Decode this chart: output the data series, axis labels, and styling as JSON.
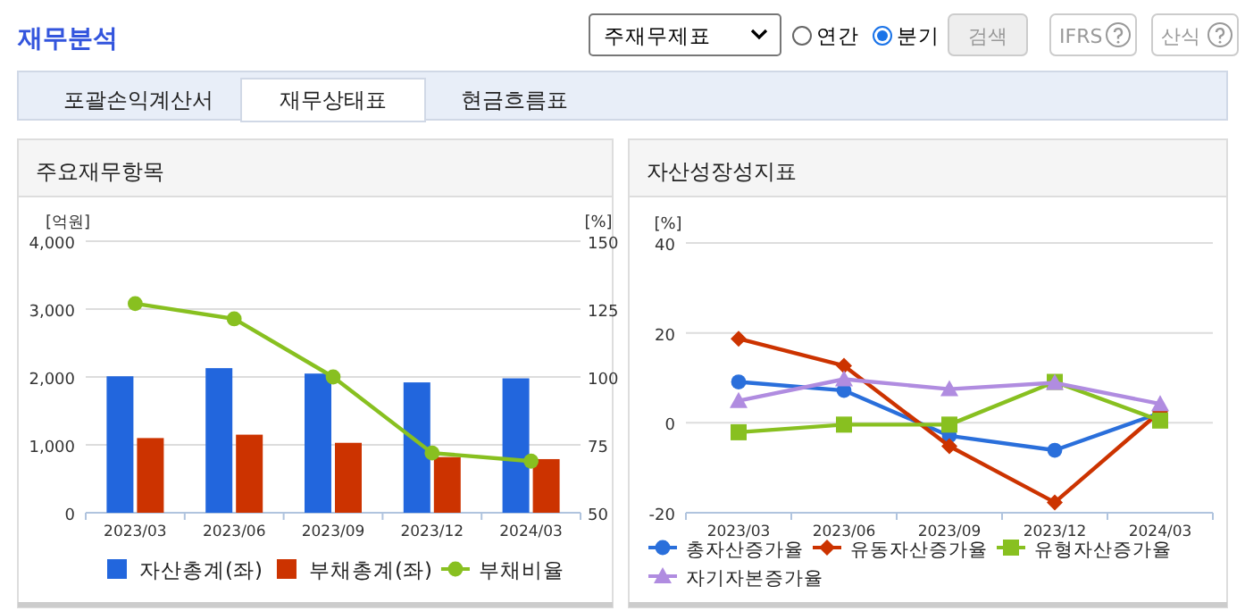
{
  "chart_data": [
    {
      "type": "bar",
      "title": "주요재무항목",
      "ylabel": "[억원]",
      "y2label": "[%]",
      "annotations": [
        "재무분석",
        "주재무제표",
        "연간",
        "분기",
        "검색",
        "IFRS",
        "산식",
        "포괄손익계산서",
        "재무상태표",
        "현금흐름표"
      ],
      "categories": [
        "2023/03",
        "2023/06",
        "2023/09",
        "2023/12",
        "2024/03"
      ],
      "series": [
        {
          "name": "자산총계(좌)",
          "color": "#2266dd",
          "values": [
            2010,
            2130,
            2050,
            1920,
            1980
          ]
        },
        {
          "name": "부채총계(좌)",
          "color": "#cc3300",
          "values": [
            1100,
            1150,
            1030,
            820,
            790
          ]
        },
        {
          "name": "부채비율",
          "type": "line",
          "axis": "y2",
          "marker": "circle",
          "color": "#88c020",
          "values": [
            127,
            121.4,
            100,
            72,
            69
          ]
        }
      ],
      "ylim": [
        0,
        4000
      ],
      "yticks": [
        0,
        {
          "value": 1000,
          "label": "1,000"
        },
        {
          "value": 2000,
          "label": "2,000"
        },
        {
          "value": 3000,
          "label": "3,000"
        },
        {
          "value": 4000,
          "label": "4,000"
        }
      ],
      "y2lim": [
        50,
        150
      ],
      "y2ticks": [
        50,
        75,
        100,
        125,
        150
      ],
      "grid": "y",
      "legend": "bottom"
    },
    {
      "type": "line",
      "title": "자산성장성지표",
      "ylabel": "[%]",
      "categories": [
        "2023/03",
        "2023/06",
        "2023/09",
        "2023/12",
        "2024/03"
      ],
      "series": [
        {
          "name": "총자산증가율",
          "marker": "circle",
          "color": "#2a6fdb",
          "values": [
            9.1,
            7.2,
            -2.9,
            -6.1,
            2.2
          ]
        },
        {
          "name": "유동자산증가율",
          "marker": "diamond",
          "color": "#cc3300",
          "values": [
            18.7,
            12.7,
            -5.2,
            -17.7,
            2.5
          ]
        },
        {
          "name": "유형자산증가율",
          "marker": "square",
          "color": "#88c020",
          "values": [
            -2.1,
            -0.4,
            -0.4,
            9.1,
            0.5
          ]
        },
        {
          "name": "자기자본증가율",
          "marker": "triangle",
          "color": "#b08ce0",
          "values": [
            4.9,
            9.7,
            7.5,
            8.9,
            4.2
          ]
        }
      ],
      "ylim": [
        -20,
        40
      ],
      "yticks": [
        -20,
        0,
        20,
        40
      ],
      "grid": "y",
      "legend": "bottom"
    }
  ]
}
